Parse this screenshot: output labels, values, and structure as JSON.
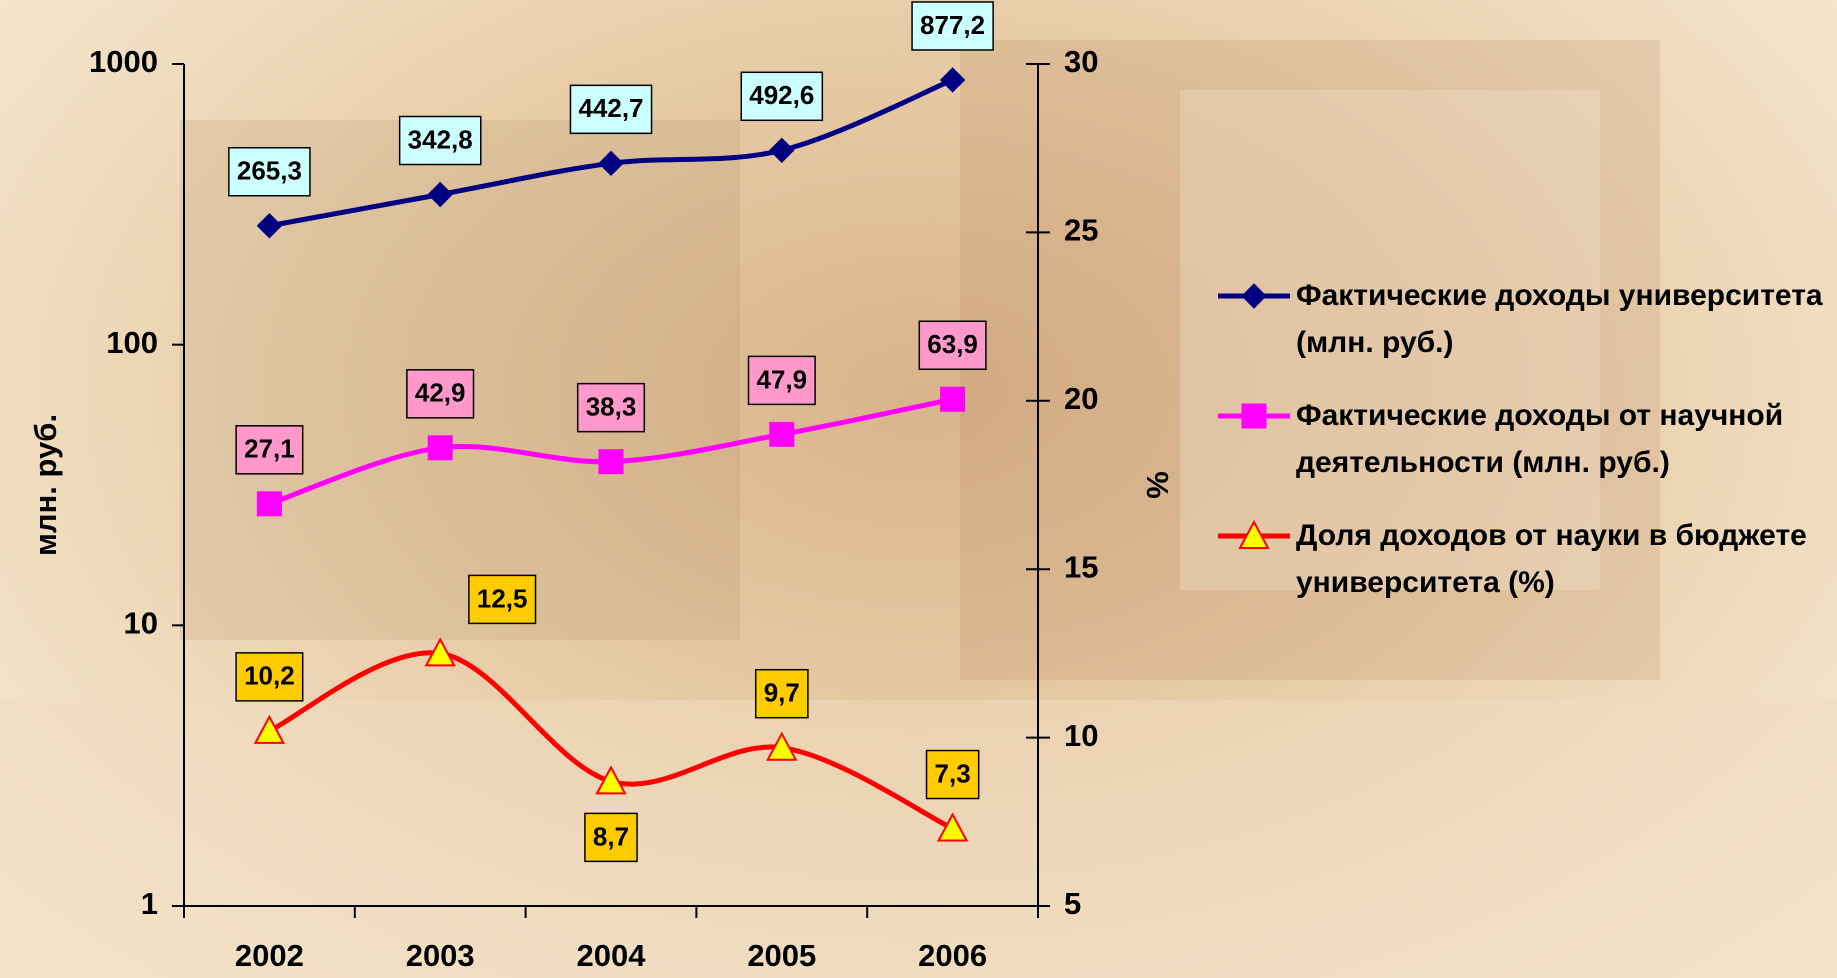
{
  "chart_data": {
    "type": "line",
    "categories": [
      "2002",
      "2003",
      "2004",
      "2005",
      "2006"
    ],
    "ylabel": "млн. руб.",
    "y2label": "%",
    "ylim": [
      1,
      1000
    ],
    "yticks": [
      1,
      10,
      100,
      1000
    ],
    "log_y": true,
    "y2lim": [
      5,
      30
    ],
    "y2ticks": [
      5,
      10,
      15,
      20,
      25,
      30
    ],
    "legend": "right",
    "series": [
      {
        "name": "Фактические доходы университета (млн. руб.)",
        "color": "#000080",
        "marker": "diamond",
        "marker_color": "#000080",
        "label_color": "#ccffff",
        "values": [
          265.3,
          342.8,
          442.7,
          492.6,
          877.2
        ],
        "value_labels": [
          "265,3",
          "342,8",
          "442,7",
          "492,6",
          "877,2"
        ]
      },
      {
        "name": "Фактические доходы от научной деятельности (млн. руб.)",
        "color": "#ff00ff",
        "marker": "square",
        "marker_color": "#ff00ff",
        "label_color": "#ff99cc",
        "values": [
          27.1,
          42.9,
          38.3,
          47.9,
          63.9
        ],
        "value_labels": [
          "27,1",
          "42,9",
          "38,3",
          "47,9",
          "63,9"
        ]
      },
      {
        "name": "Доля доходов от науки в бюджете университета (%)",
        "color": "#ff0000",
        "marker": "triangle",
        "marker_color": "#ffff00",
        "label_color": "#ffcc00",
        "axis": "y2",
        "values": [
          10.2,
          12.5,
          8.7,
          9.7,
          7.3
        ],
        "value_labels": [
          "10,2",
          "12,5",
          "8,7",
          "9,7",
          "7,3"
        ]
      }
    ]
  }
}
